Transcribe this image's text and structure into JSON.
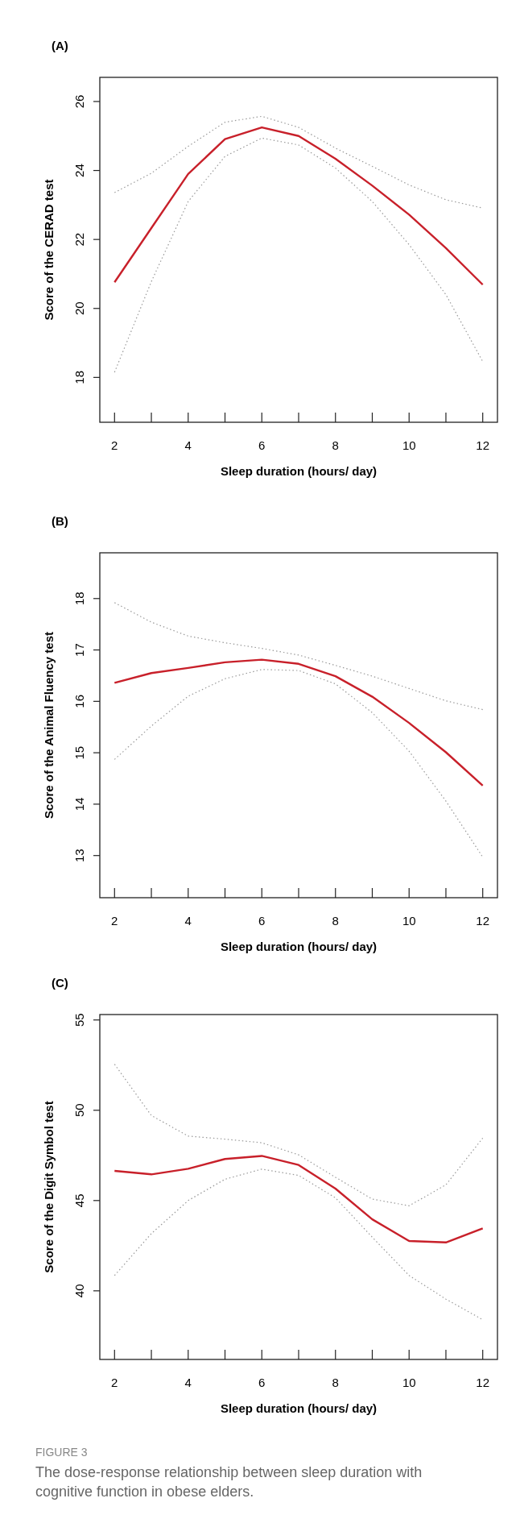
{
  "chart_data": [
    {
      "type": "line",
      "title": "(A)",
      "xlabel": "Sleep duration  (hours/ day)",
      "ylabel": "Score of the CERAD test",
      "x": [
        2,
        3,
        4,
        5,
        6,
        7,
        8,
        9,
        10,
        11,
        12
      ],
      "xlim": [
        1.6,
        12.4
      ],
      "ylim": [
        16.7,
        26.7
      ],
      "xticks": [
        2,
        {
          "value": 3,
          "label": null
        },
        4,
        {
          "value": 5,
          "label": null
        },
        6,
        {
          "value": 7,
          "label": null
        },
        8,
        {
          "value": 9,
          "label": null
        },
        10,
        {
          "value": 11,
          "label": null
        },
        12
      ],
      "yticks": [
        18,
        20,
        22,
        24,
        26
      ],
      "line_style": "solid",
      "series": [
        {
          "color": "#c8202a",
          "values": [
            20.76,
            22.33,
            23.9,
            24.91,
            25.25,
            25.0,
            24.34,
            23.56,
            22.72,
            21.75,
            20.69
          ]
        },
        {
          "color": "#9a9a9a",
          "line_style": "dotted",
          "values": [
            23.36,
            23.92,
            24.7,
            25.4,
            25.57,
            25.25,
            24.65,
            24.12,
            23.58,
            23.15,
            22.91
          ]
        },
        {
          "color": "#9a9a9a",
          "line_style": "dotted",
          "values": [
            18.15,
            20.78,
            23.1,
            24.41,
            24.94,
            24.74,
            24.07,
            23.1,
            21.85,
            20.4,
            18.46
          ]
        }
      ]
    },
    {
      "type": "line",
      "title": "(B)",
      "xlabel": "Sleep duration  (hours/ day)",
      "ylabel": "Score of the Animal Fluency test",
      "x": [
        2,
        3,
        4,
        5,
        6,
        7,
        8,
        9,
        10,
        11,
        12
      ],
      "xlim": [
        1.6,
        12.4
      ],
      "ylim": [
        12.18,
        18.89
      ],
      "xticks": [
        2,
        {
          "value": 3,
          "label": null
        },
        4,
        {
          "value": 5,
          "label": null
        },
        6,
        {
          "value": 7,
          "label": null
        },
        8,
        {
          "value": 9,
          "label": null
        },
        10,
        {
          "value": 11,
          "label": null
        },
        12
      ],
      "yticks": [
        13,
        14,
        15,
        16,
        17,
        18
      ],
      "line_style": "solid",
      "series": [
        {
          "color": "#c8202a",
          "values": [
            16.36,
            16.55,
            16.65,
            16.76,
            16.81,
            16.73,
            16.49,
            16.09,
            15.58,
            15.01,
            14.36
          ]
        },
        {
          "color": "#9a9a9a",
          "line_style": "dotted",
          "values": [
            17.92,
            17.54,
            17.27,
            17.14,
            17.03,
            16.9,
            16.7,
            16.49,
            16.25,
            16.01,
            15.84
          ]
        },
        {
          "color": "#9a9a9a",
          "line_style": "dotted",
          "values": [
            14.87,
            15.52,
            16.1,
            16.44,
            16.62,
            16.6,
            16.34,
            15.78,
            15.03,
            14.06,
            12.97
          ]
        }
      ]
    },
    {
      "type": "line",
      "title": "(C)",
      "xlabel": "Sleep duration  (hours/ day)",
      "ylabel": "Score of the Digit Symbol test",
      "x": [
        2,
        3,
        4,
        5,
        6,
        7,
        8,
        9,
        10,
        11,
        12
      ],
      "xlim": [
        1.6,
        12.4
      ],
      "ylim": [
        36.2,
        55.3
      ],
      "xticks": [
        2,
        {
          "value": 3,
          "label": null
        },
        4,
        {
          "value": 5,
          "label": null
        },
        6,
        {
          "value": 7,
          "label": null
        },
        8,
        {
          "value": 9,
          "label": null
        },
        10,
        {
          "value": 11,
          "label": null
        },
        12
      ],
      "yticks": [
        40,
        45,
        50,
        55
      ],
      "line_style": "solid",
      "series": [
        {
          "color": "#c8202a",
          "values": [
            46.64,
            46.45,
            46.76,
            47.3,
            47.47,
            46.97,
            45.66,
            43.96,
            42.76,
            42.68,
            43.46
          ]
        },
        {
          "color": "#9a9a9a",
          "line_style": "dotted",
          "values": [
            52.55,
            49.71,
            48.57,
            48.4,
            48.2,
            47.53,
            46.29,
            45.08,
            44.71,
            45.87,
            48.46
          ]
        },
        {
          "color": "#9a9a9a",
          "line_style": "dotted",
          "values": [
            40.85,
            43.17,
            45.0,
            46.18,
            46.74,
            46.39,
            45.15,
            42.97,
            40.85,
            39.54,
            38.4
          ]
        }
      ],
      "annotations": [
        "FIGURE 3",
        "The dose-response relationship between sleep duration with cognitive function in obese elders."
      ]
    }
  ]
}
